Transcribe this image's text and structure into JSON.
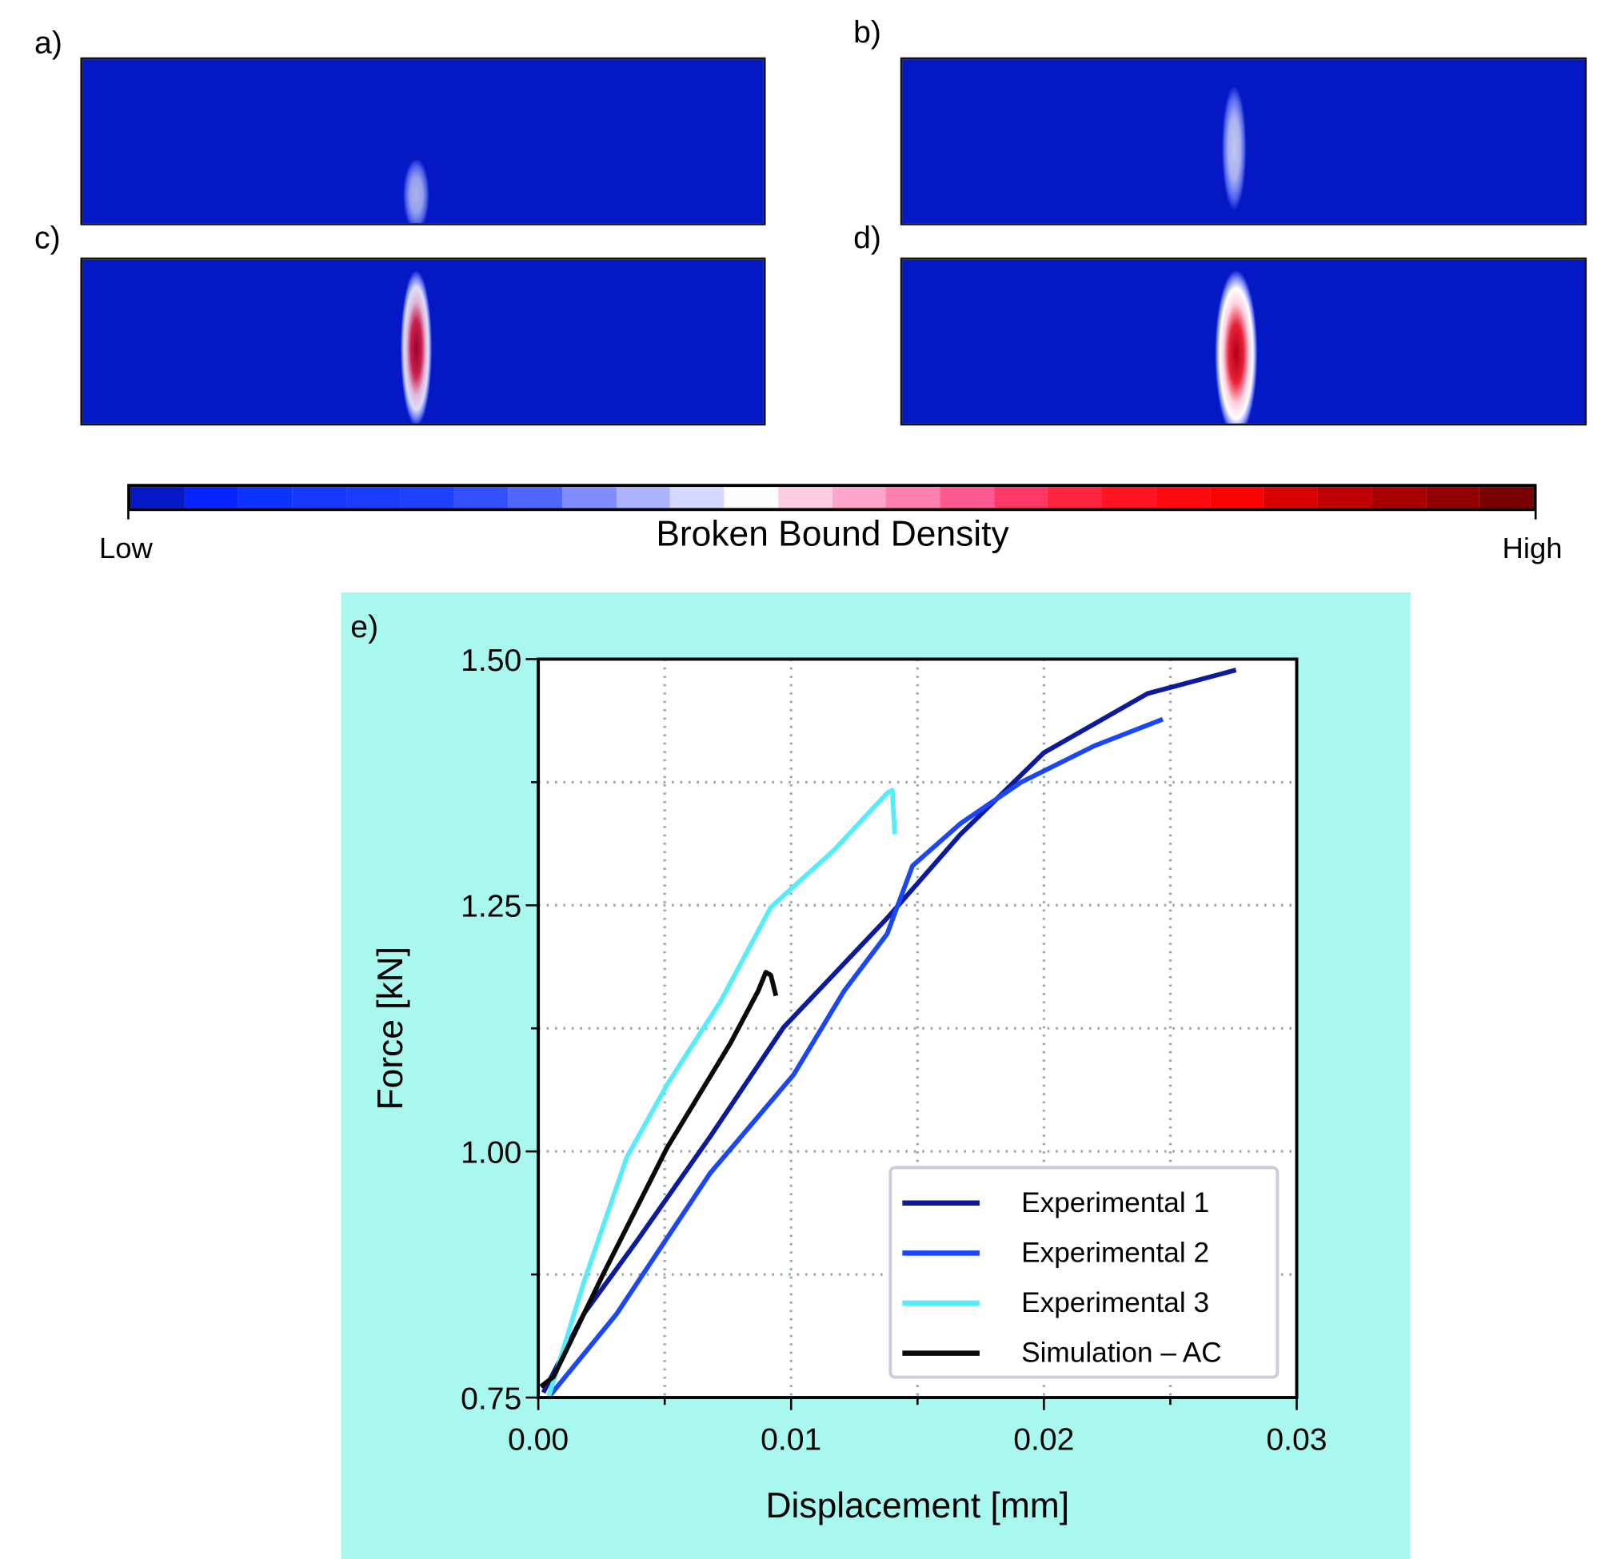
{
  "panels": [
    {
      "label": "a)",
      "blob": {
        "intensity": 0.25
      }
    },
    {
      "label": "b)",
      "blob": {
        "intensity": 0.45
      }
    },
    {
      "label": "c)",
      "blob": {
        "intensity": 0.7
      }
    },
    {
      "label": "d)",
      "blob": {
        "intensity": 1.0
      }
    }
  ],
  "colorbar": {
    "title": "Broken Bound Density",
    "low": "Low",
    "high": "High",
    "colors": [
      "#0418c4",
      "#0524ff",
      "#0f33ff",
      "#1438ff",
      "#1a3cff",
      "#1d42ff",
      "#3350ff",
      "#4f66ff",
      "#7f8dff",
      "#adb3ff",
      "#d5d8ff",
      "#fdfdff",
      "#ffcce4",
      "#ffa6cc",
      "#ff80b0",
      "#ff5a90",
      "#ff3866",
      "#ff2440",
      "#ff1420",
      "#ff0a10",
      "#ff0000",
      "#d80000",
      "#c00000",
      "#a80000",
      "#900000",
      "#780000"
    ]
  },
  "chart_data": {
    "type": "line",
    "panel_label": "e)",
    "xlabel": "Displacement [mm]",
    "ylabel": "Force [kN]",
    "xlim": [
      0,
      0.03
    ],
    "ylim": [
      0.75,
      1.5
    ],
    "xticks": [
      "0.00",
      "0.01",
      "0.02",
      "0.03"
    ],
    "yticks": [
      "0.75",
      "1.00",
      "1.25",
      "1.50"
    ],
    "grid": "dotted, at minor ticks (0.005 mm, 0.125 kN)",
    "legend_position": "bottom-right",
    "background": "#a8f8ef",
    "series": [
      {
        "name": "Experimental 1",
        "color": "#0c1a9c",
        "x": [
          0.0002,
          0.0018,
          0.0039,
          0.0068,
          0.0097,
          0.0138,
          0.0167,
          0.02,
          0.0241,
          0.0276
        ],
        "y": [
          0.755,
          0.835,
          0.909,
          1.015,
          1.126,
          1.237,
          1.322,
          1.405,
          1.465,
          1.489
        ]
      },
      {
        "name": "Experimental 2",
        "color": "#1c46fa",
        "x": [
          0.0004,
          0.0031,
          0.0068,
          0.0101,
          0.0121,
          0.0138,
          0.0148,
          0.0167,
          0.0191,
          0.022,
          0.0247
        ],
        "y": [
          0.75,
          0.835,
          0.978,
          1.078,
          1.163,
          1.221,
          1.29,
          1.333,
          1.375,
          1.412,
          1.439
        ]
      },
      {
        "name": "Experimental 3",
        "color": "#55eef8",
        "x": [
          0.0004,
          0.0018,
          0.0035,
          0.0051,
          0.0072,
          0.0092,
          0.0101,
          0.0117,
          0.0138,
          0.014,
          0.0141
        ],
        "y": [
          0.75,
          0.867,
          0.994,
          1.068,
          1.152,
          1.248,
          1.269,
          1.306,
          1.364,
          1.367,
          1.322
        ]
      },
      {
        "name": "Simulation – AC",
        "color": "#0a0a0a",
        "x": [
          0.0001,
          0.0006,
          0.0026,
          0.0051,
          0.0076,
          0.0087,
          0.009,
          0.0092,
          0.0094
        ],
        "y": [
          0.761,
          0.771,
          0.877,
          1.004,
          1.11,
          1.163,
          1.182,
          1.179,
          1.158
        ]
      }
    ]
  }
}
